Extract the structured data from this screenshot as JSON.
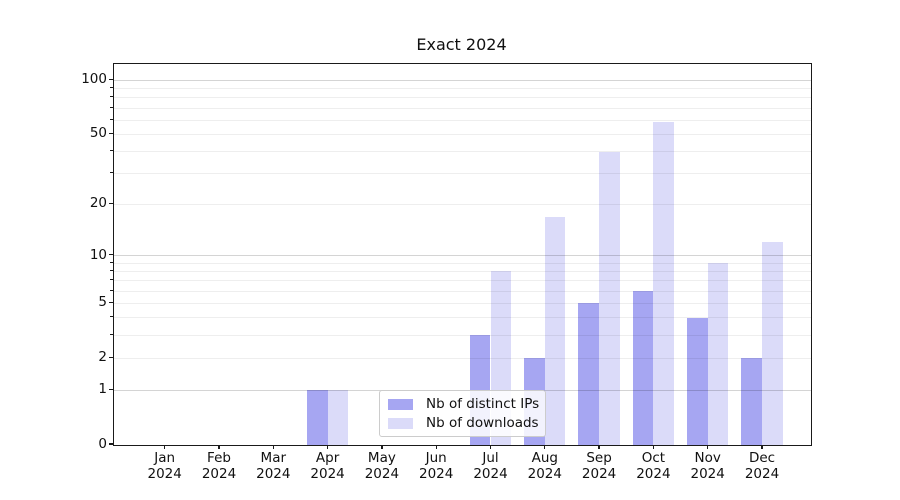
{
  "title": "Exact 2024",
  "legend": {
    "items": [
      {
        "label": "Nb of distinct IPs",
        "color": "#a6a6f2"
      },
      {
        "label": "Nb of downloads",
        "color": "#dbdbf9"
      }
    ]
  },
  "chart_data": {
    "type": "bar",
    "title": "Exact 2024",
    "categories": [
      "Jan 2024",
      "Feb 2024",
      "Mar 2024",
      "Apr 2024",
      "May 2024",
      "Jun 2024",
      "Jul 2024",
      "Aug 2024",
      "Sep 2024",
      "Oct 2024",
      "Nov 2024",
      "Dec 2024"
    ],
    "month_labels": [
      "Jan",
      "Feb",
      "Mar",
      "Apr",
      "May",
      "Jun",
      "Jul",
      "Aug",
      "Sep",
      "Oct",
      "Nov",
      "Dec"
    ],
    "year_label": "2024",
    "series": [
      {
        "name": "Nb of distinct IPs",
        "color": "#a6a6f2",
        "values": [
          0,
          0,
          0,
          1,
          0,
          0,
          3,
          2,
          5,
          6,
          4,
          2
        ]
      },
      {
        "name": "Nb of downloads",
        "color": "#dbdbf9",
        "values": [
          0,
          0,
          0,
          1,
          0,
          0,
          8,
          17,
          40,
          59,
          9,
          12
        ]
      }
    ],
    "xlabel": "",
    "ylabel": "",
    "y_scale": "log1p",
    "y_ticks": [
      0,
      1,
      2,
      5,
      10,
      20,
      50,
      100
    ],
    "y_major_gridlines": [
      1,
      10,
      100
    ],
    "y_minor_gridlines": [
      2,
      3,
      4,
      5,
      6,
      7,
      8,
      9,
      20,
      30,
      40,
      50,
      60,
      70,
      80,
      90
    ],
    "ylim": [
      0,
      123
    ],
    "grid": "horizontal",
    "legend_position": "lower center"
  }
}
